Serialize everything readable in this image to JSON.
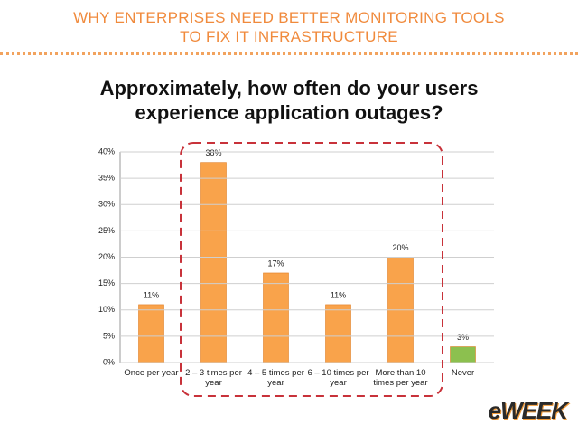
{
  "header": {
    "title": "WHY ENTERPRISES NEED BETTER MONITORING TOOLS TO FIX IT INFRASTRUCTURE"
  },
  "chart_data": {
    "type": "bar",
    "title": "Approximately, how often do your users experience application outages?",
    "categories": [
      "Once per year",
      "2 – 3 times per year",
      "4 – 5 times per year",
      "6 – 10 times per year",
      "More than 10 times per year",
      "Never"
    ],
    "values": [
      11,
      38,
      17,
      11,
      20,
      3
    ],
    "value_labels": [
      "11%",
      "38%",
      "17%",
      "11%",
      "20%",
      "3%"
    ],
    "colors": [
      "#f9a34b",
      "#f9a34b",
      "#f9a34b",
      "#f9a34b",
      "#f9a34b",
      "#8cc04f"
    ],
    "ylim": [
      0,
      40
    ],
    "yticks": [
      {
        "value": 0,
        "label": "0%"
      },
      {
        "value": 5,
        "label": "5%"
      },
      {
        "value": 10,
        "label": "10%"
      },
      {
        "value": 15,
        "label": "15%"
      },
      {
        "value": 20,
        "label": "20%"
      },
      {
        "value": 25,
        "label": "25%"
      },
      {
        "value": 30,
        "label": "30%"
      },
      {
        "value": 35,
        "label": "35%"
      },
      {
        "value": 40,
        "label": "40%"
      }
    ],
    "grid": true
  },
  "logo": "eWEEK"
}
